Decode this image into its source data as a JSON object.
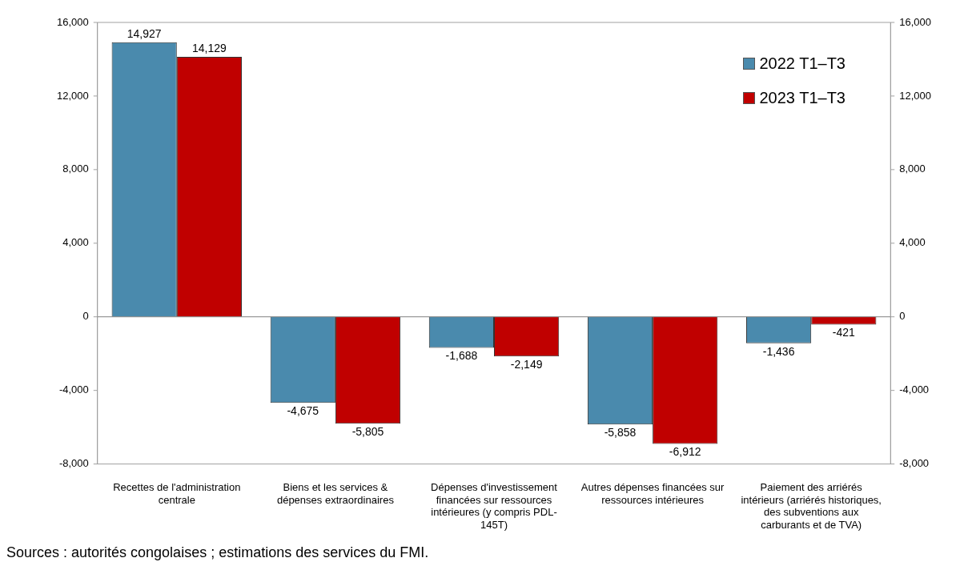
{
  "chart_data": {
    "type": "bar",
    "categories": [
      "Recettes de l'administration centrale",
      "Biens et les services & dépenses extraordinaires",
      "Dépenses d'investissement financées sur ressources intérieures (y compris PDL-145T)",
      "Autres dépenses financées sur ressources intérieures",
      "Paiement des arriérés intérieurs (arriérés historiques, des subventions aux carburants et de TVA)"
    ],
    "series": [
      {
        "name": "2022 T1–T3",
        "color": "#4a8aad",
        "values": [
          14927,
          -4675,
          -1688,
          -5858,
          -1436
        ],
        "value_labels": [
          "14,927",
          "-4,675",
          "-1,688",
          "-5,858",
          "-1,436"
        ]
      },
      {
        "name": "2023 T1–T3",
        "color": "#c00000",
        "values": [
          14129,
          -5805,
          -2149,
          -6912,
          -421
        ],
        "value_labels": [
          "14,129",
          "-5,805",
          "-2,149",
          "-6,912",
          "-421"
        ]
      }
    ],
    "ylim": [
      -8000,
      16000
    ],
    "yticks": [
      {
        "value": -8000,
        "label": "-8,000"
      },
      {
        "value": -4000,
        "label": "-4,000"
      },
      0,
      {
        "value": 4000,
        "label": "4,000"
      },
      {
        "value": 8000,
        "label": "8,000"
      },
      {
        "value": 12000,
        "label": "12,000"
      },
      {
        "value": 16000,
        "label": "16,000"
      }
    ],
    "y2lim": [
      -8000,
      16000
    ],
    "y2ticks": [
      {
        "value": -8000,
        "label": "-8,000"
      },
      {
        "value": -4000,
        "label": "-4,000"
      },
      0,
      {
        "value": 4000,
        "label": "4,000"
      },
      {
        "value": 8000,
        "label": "8,000"
      },
      {
        "value": 12000,
        "label": "12,000"
      },
      {
        "value": 16000,
        "label": "16,000"
      }
    ],
    "legend": "top right",
    "annotations": [
      "Sources :  autorités congolaises ; estimations des services du FMI."
    ]
  }
}
